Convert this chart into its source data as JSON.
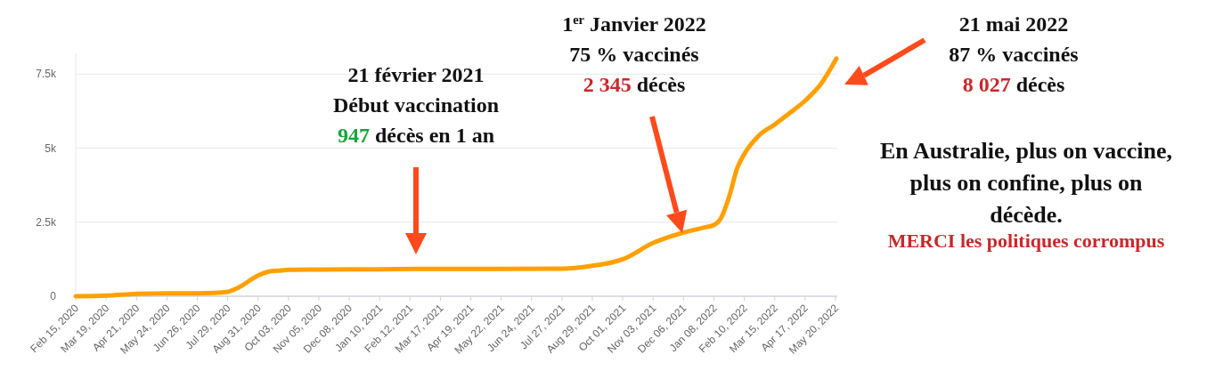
{
  "chart_data": {
    "type": "line",
    "x": [
      "2020-02-15",
      "2020-03-19",
      "2020-04-21",
      "2020-05-24",
      "2020-06-26",
      "2020-07-15",
      "2020-07-29",
      "2020-08-10",
      "2020-08-31",
      "2020-09-10",
      "2020-09-25",
      "2020-10-03",
      "2020-11-05",
      "2021-01-10",
      "2021-02-21",
      "2021-05-22",
      "2021-07-27",
      "2021-08-29",
      "2021-09-20",
      "2021-10-01",
      "2021-11-03",
      "2021-12-06",
      "2022-01-01",
      "2022-01-08",
      "2022-01-15",
      "2022-01-25",
      "2022-02-02",
      "2022-02-10",
      "2022-02-25",
      "2022-03-15",
      "2022-04-01",
      "2022-04-17",
      "2022-05-05",
      "2022-05-21"
    ],
    "series": [
      {
        "color": "#ffa000",
        "values": [
          0,
          20,
          80,
          100,
          100,
          110,
          150,
          300,
          700,
          820,
          870,
          890,
          900,
          910,
          920,
          920,
          930,
          1030,
          1150,
          1250,
          1800,
          2150,
          2345,
          2400,
          2600,
          3400,
          4300,
          4800,
          5400,
          5800,
          6200,
          6600,
          7200,
          8027
        ]
      }
    ],
    "xlim": [
      "2020-02-15",
      "2022-05-22"
    ],
    "ylim": [
      0,
      8200
    ],
    "xticks": [
      {
        "value": "2020-02-15",
        "label": "Feb 15, 2020"
      },
      {
        "value": "2020-03-19",
        "label": "Mar 19, 2020"
      },
      {
        "value": "2020-04-21",
        "label": "Apr 21, 2020"
      },
      {
        "value": "2020-05-24",
        "label": "May 24, 2020"
      },
      {
        "value": "2020-06-26",
        "label": "Jun 26, 2020"
      },
      {
        "value": "2020-07-29",
        "label": "Jul 29, 2020"
      },
      {
        "value": "2020-08-31",
        "label": "Aug 31, 2020"
      },
      {
        "value": "2020-10-03",
        "label": "Oct 03, 2020"
      },
      {
        "value": "2020-11-05",
        "label": "Nov 05, 2020"
      },
      {
        "value": "2020-12-08",
        "label": "Dec 08, 2020"
      },
      {
        "value": "2021-01-10",
        "label": "Jan 10, 2021"
      },
      {
        "value": "2021-02-12",
        "label": "Feb 12, 2021"
      },
      {
        "value": "2021-03-17",
        "label": "Mar 17, 2021"
      },
      {
        "value": "2021-04-19",
        "label": "Apr 19, 2021"
      },
      {
        "value": "2021-05-22",
        "label": "May 22, 2021"
      },
      {
        "value": "2021-06-24",
        "label": "Jun 24, 2021"
      },
      {
        "value": "2021-07-27",
        "label": "Jul 27, 2021"
      },
      {
        "value": "2021-08-29",
        "label": "Aug 29, 2021"
      },
      {
        "value": "2021-10-01",
        "label": "Oct 01, 2021"
      },
      {
        "value": "2021-11-03",
        "label": "Nov 03, 2021"
      },
      {
        "value": "2021-12-06",
        "label": "Dec 06, 2021"
      },
      {
        "value": "2022-01-08",
        "label": "Jan 08, 2022"
      },
      {
        "value": "2022-02-10",
        "label": "Feb 10, 2022"
      },
      {
        "value": "2022-03-15",
        "label": "Mar 15, 2022"
      },
      {
        "value": "2022-04-17",
        "label": "Apr 17, 2022"
      },
      {
        "value": "2022-05-20",
        "label": "May 20, 2022"
      }
    ],
    "yticks": [
      0,
      {
        "value": 2500,
        "label": "2.5k"
      },
      {
        "value": 5000,
        "label": "5k"
      },
      {
        "value": 7500,
        "label": "7.5k"
      }
    ],
    "grid": "y",
    "annotations": [
      "21 février 2021\nDébut vaccination\n947 décès en 1 an",
      "1$^{er}$ Janvier 2022\n75 % vaccinés\n2 345 décès",
      "21 mai 2022\n87 % vaccinés\n8 027 décès",
      "En Australie, plus on vaccine, plus on confine, plus on décède.",
      "MERCI les politiques corrompus"
    ]
  }
}
